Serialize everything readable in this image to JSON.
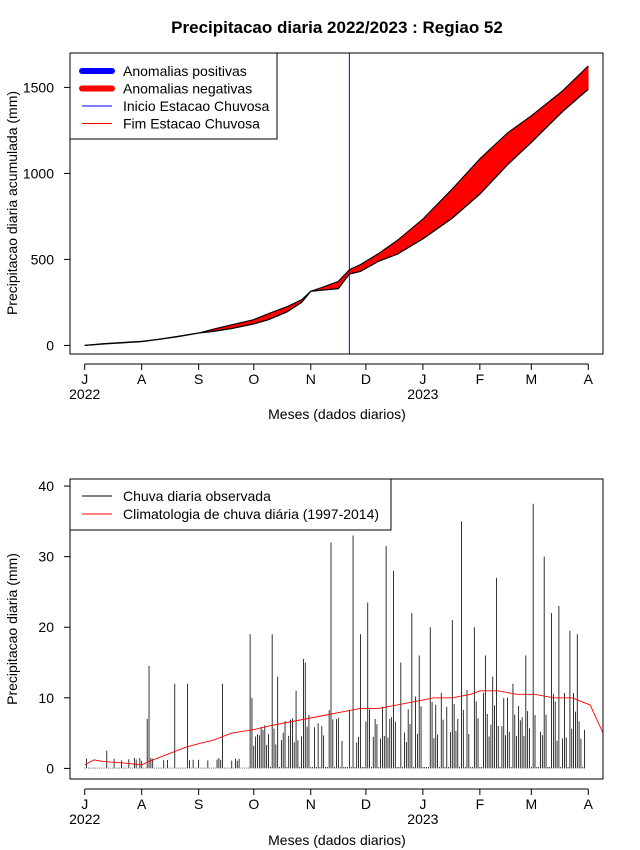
{
  "title": "Precipitacao diaria 2022/2023 : Regiao 52",
  "month_ticks": [
    "J",
    "A",
    "S",
    "O",
    "N",
    "D",
    "J",
    "F",
    "M",
    "A"
  ],
  "year_labels": [
    "2022",
    "2023"
  ],
  "colors": {
    "positive": "#0000ff",
    "negative": "#ff0000",
    "start_line": "#0000ff",
    "end_line": "#ff0000",
    "observed": "#000000",
    "climatology": "#ff0000"
  },
  "chart_data": [
    {
      "type": "area",
      "title": "Precipitacao diaria 2022/2023 : Regiao 52",
      "xlabel": "Meses (dados diarios)",
      "ylabel": "Precipitacao diaria acumulada (mm)",
      "x_unit": "days since 2022-07-01",
      "xlim": [
        -8,
        282
      ],
      "ylim": [
        -50,
        1700
      ],
      "yticks": [
        0,
        500,
        1000,
        1500
      ],
      "month_tick_days": [
        0,
        31,
        62,
        92,
        123,
        153,
        184,
        215,
        243,
        274
      ],
      "legend_position": "top-left",
      "legend": [
        "Anomalias positivas",
        "Anomalias negativas",
        "Inicio Estacao Chuvosa",
        "Fim Estacao Chuvosa"
      ],
      "rainy_season_start_day": 144,
      "series": [
        {
          "name": "Observed cumulative",
          "x": [
            0,
            10,
            20,
            31,
            40,
            50,
            62,
            70,
            80,
            92,
            100,
            110,
            118,
            123,
            130,
            138,
            144,
            150,
            160,
            170,
            184,
            200,
            215,
            230,
            243,
            260,
            274
          ],
          "values": [
            0,
            8,
            15,
            22,
            35,
            50,
            72,
            82,
            98,
            125,
            150,
            195,
            250,
            315,
            322,
            330,
            415,
            430,
            490,
            530,
            620,
            740,
            880,
            1050,
            1180,
            1360,
            1490
          ]
        },
        {
          "name": "Climatology cumulative",
          "x": [
            0,
            10,
            20,
            31,
            40,
            50,
            62,
            70,
            80,
            92,
            100,
            110,
            118,
            123,
            130,
            138,
            144,
            150,
            160,
            170,
            184,
            200,
            215,
            230,
            243,
            260,
            274
          ],
          "values": [
            0,
            10,
            17,
            24,
            35,
            52,
            72,
            95,
            120,
            150,
            185,
            225,
            265,
            315,
            340,
            372,
            440,
            470,
            535,
            610,
            735,
            910,
            1085,
            1235,
            1335,
            1480,
            1625
          ]
        }
      ]
    },
    {
      "type": "line",
      "xlabel": "Meses (dados diarios)",
      "ylabel": "Precipitacao diaria (mm)",
      "x_unit": "days since 2022-07-01",
      "xlim": [
        -8,
        282
      ],
      "ylim": [
        -1.5,
        41
      ],
      "yticks": [
        0,
        10,
        20,
        30,
        40
      ],
      "month_tick_days": [
        0,
        31,
        62,
        92,
        123,
        153,
        184,
        215,
        243,
        274
      ],
      "legend_position": "top-left",
      "legend": [
        "Chuva diaria observada",
        "Climatologia de chuva diária (1997-2014)"
      ],
      "observed_peaks": {
        "x": [
          12,
          34,
          35,
          49,
          56,
          75,
          90,
          91,
          102,
          105,
          115,
          119,
          120,
          134,
          146,
          150,
          154,
          164,
          168,
          172,
          178,
          182,
          188,
          200,
          205,
          212,
          218,
          222,
          224,
          233,
          240,
          244,
          250,
          254,
          258,
          264,
          268
        ],
        "values": [
          2.5,
          7,
          14.5,
          12,
          12,
          12,
          19,
          10,
          19,
          13,
          11,
          15.5,
          15,
          32,
          33,
          19,
          23.5,
          31.5,
          28,
          15,
          22,
          16,
          20,
          21,
          35,
          20,
          16,
          13,
          27,
          12,
          16,
          37.5,
          30,
          22,
          23,
          19.5,
          19
        ]
      },
      "climatology": {
        "x": [
          0,
          5,
          10,
          20,
          31,
          35,
          45,
          55,
          62,
          70,
          80,
          92,
          100,
          110,
          120,
          130,
          140,
          150,
          160,
          170,
          180,
          190,
          200,
          210,
          215,
          225,
          235,
          245,
          255,
          265,
          275,
          282
        ],
        "values": [
          0.5,
          1.2,
          1,
          0.8,
          0.5,
          1,
          2,
          3,
          3.5,
          4,
          5,
          5.5,
          6,
          6.5,
          7,
          7.5,
          8,
          8.5,
          8.5,
          9,
          9.5,
          10,
          10,
          10.5,
          11,
          11,
          10.5,
          10.5,
          10,
          10,
          9,
          5
        ]
      }
    }
  ]
}
